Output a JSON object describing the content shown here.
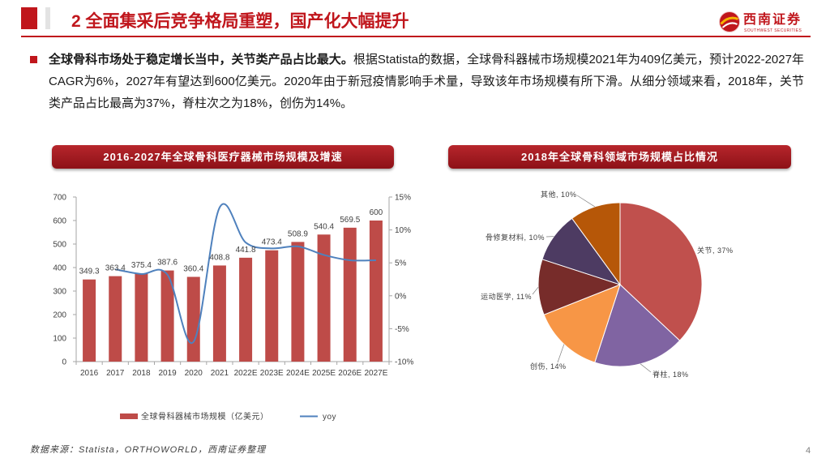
{
  "header": {
    "title": "2 全面集采后竞争格局重塑，国产化大幅提升",
    "logo_name": "西南证券",
    "logo_tagline": "SOUTHWEST SECURITIES"
  },
  "summary": {
    "lead": "全球骨科市场处于稳定增长当中，关节类产品占比最大。",
    "body": "根据Statista的数据，全球骨科器械市场规模2021年为409亿美元，预计2022-2027年CAGR为6%，2027年有望达到600亿美元。2020年由于新冠疫情影响手术量，导致该年市场规模有所下滑。从细分领域来看，2018年，关节类产品占比最高为37%，脊柱次之为18%，创伤为14%。"
  },
  "chart_data": [
    {
      "type": "bar",
      "title": "2016-2027年全球骨科医疗器械市场规模及增速",
      "categories": [
        "2016",
        "2017",
        "2018",
        "2019",
        "2020",
        "2021",
        "2022E",
        "2023E",
        "2024E",
        "2025E",
        "2026E",
        "2027E"
      ],
      "series": [
        {
          "name": "全球骨科器械市场规模（亿美元）",
          "type": "bar",
          "values": [
            349.3,
            363.4,
            375.4,
            387.6,
            360.4,
            408.8,
            441.8,
            473.4,
            508.9,
            540.4,
            569.5,
            600
          ]
        },
        {
          "name": "yoy",
          "type": "line",
          "values": [
            null,
            4.0,
            3.3,
            3.2,
            -7.0,
            13.4,
            8.1,
            7.2,
            7.5,
            6.2,
            5.4,
            5.4
          ]
        }
      ],
      "ylim": [
        0,
        700
      ],
      "yticks": [
        0,
        100,
        200,
        300,
        400,
        500,
        600,
        700
      ],
      "y2lim": [
        -10,
        15
      ],
      "y2tick_labels": [
        "-10%",
        "-5%",
        "0%",
        "5%",
        "10%",
        "15%"
      ]
    },
    {
      "type": "pie",
      "title": "2018年全球骨科领域市场规模占比情况",
      "slices": [
        {
          "label": "关节",
          "value": 37,
          "color": "#C0504D"
        },
        {
          "label": "脊柱",
          "value": 18,
          "color": "#8064A2"
        },
        {
          "label": "创伤",
          "value": 14,
          "color": "#F79646"
        },
        {
          "label": "运动医学",
          "value": 11,
          "color": "#772C2A"
        },
        {
          "label": "骨修复材料",
          "value": 10,
          "color": "#4D3B62"
        },
        {
          "label": "其他",
          "value": 10,
          "color": "#B65708"
        }
      ]
    }
  ],
  "footer": {
    "source": "数据来源：Statista，ORTHOWORLD，西南证券整理",
    "page_number": "4"
  },
  "colors": {
    "accent": "#C0161C",
    "bar": "#BE4B48",
    "line": "#4F81BD",
    "axis": "#A6A6A6"
  }
}
